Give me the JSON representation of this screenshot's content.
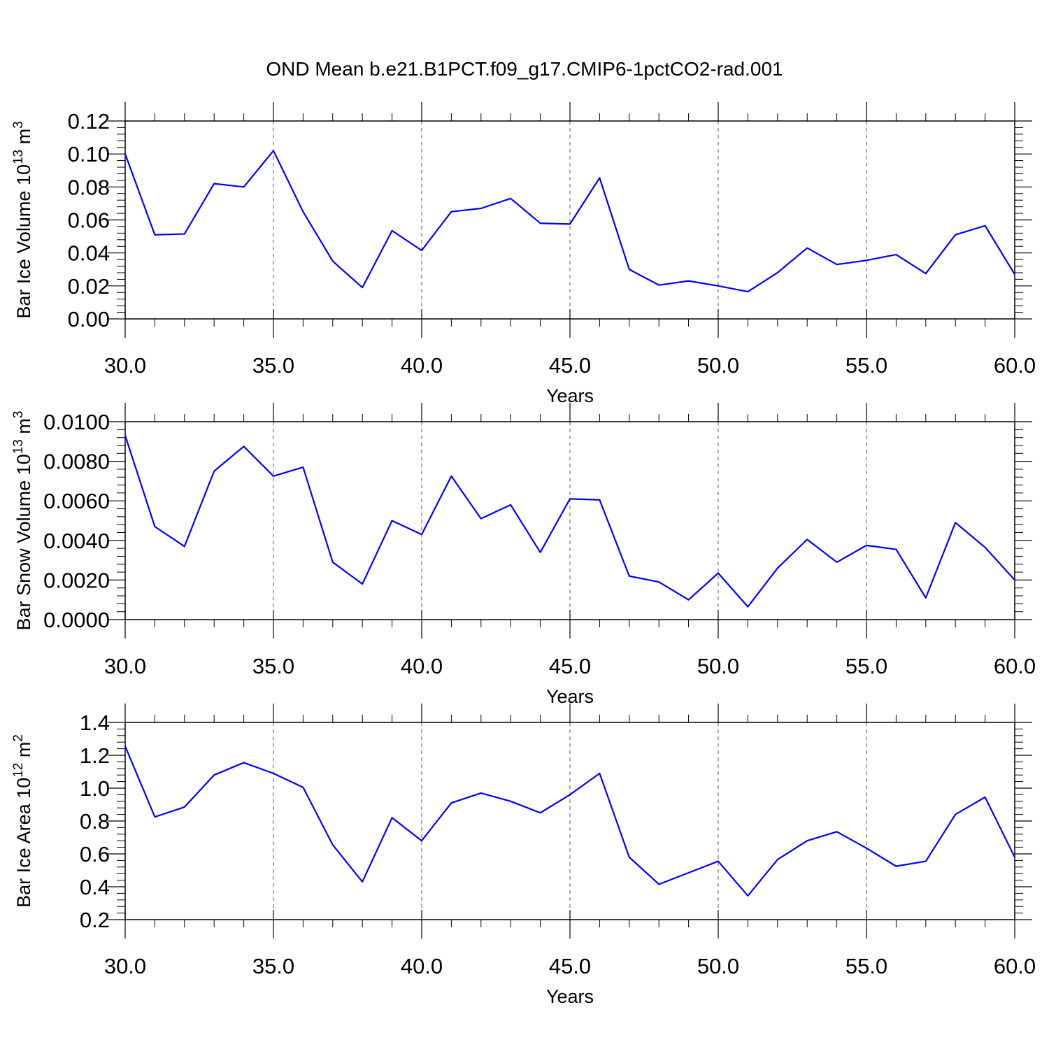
{
  "title": "OND Mean b.e21.B1PCT.f09_g17.CMIP6-1pctCO2-rad.001",
  "colors": {
    "line": "#0000ff",
    "axis": "#000000",
    "grid": "#555555"
  },
  "chart_data": [
    {
      "type": "line",
      "xlabel": "Years",
      "ylabel": "Bar Ice Volume 10",
      "ylabel_exp": "13",
      "ylabel_unit": " m",
      "ylabel_unit_exp": "3",
      "xlim": [
        30,
        60
      ],
      "ylim": [
        0,
        0.12
      ],
      "xticks": [
        30,
        35,
        40,
        45,
        50,
        55,
        60
      ],
      "xtick_labels": [
        "30.0",
        "35.0",
        "40.0",
        "45.0",
        "50.0",
        "55.0",
        "60.0"
      ],
      "yticks": [
        0,
        0.02,
        0.04,
        0.06,
        0.08,
        0.1,
        0.12
      ],
      "ytick_labels": [
        "0.00",
        "0.02",
        "0.04",
        "0.06",
        "0.08",
        "0.10",
        "0.12"
      ],
      "grid": "x-dashed",
      "x": [
        30,
        31,
        32,
        33,
        34,
        35,
        36,
        37,
        38,
        39,
        40,
        41,
        42,
        43,
        44,
        45,
        46,
        47,
        48,
        49,
        50,
        51,
        52,
        53,
        54,
        55,
        56,
        57,
        58,
        59,
        60
      ],
      "y": [
        0.1,
        0.051,
        0.0515,
        0.082,
        0.08,
        0.102,
        0.065,
        0.035,
        0.019,
        0.0535,
        0.0415,
        0.065,
        0.067,
        0.073,
        0.058,
        0.0575,
        0.0855,
        0.03,
        0.0205,
        0.023,
        0.02,
        0.0165,
        0.028,
        0.043,
        0.033,
        0.0355,
        0.039,
        0.0275,
        0.051,
        0.0565,
        0.027
      ]
    },
    {
      "type": "line",
      "xlabel": "Years",
      "ylabel": "Bar Snow Volume 10",
      "ylabel_exp": "13",
      "ylabel_unit": " m",
      "ylabel_unit_exp": "3",
      "xlim": [
        30,
        60
      ],
      "ylim": [
        0,
        0.01
      ],
      "xticks": [
        30,
        35,
        40,
        45,
        50,
        55,
        60
      ],
      "xtick_labels": [
        "30.0",
        "35.0",
        "40.0",
        "45.0",
        "50.0",
        "55.0",
        "60.0"
      ],
      "yticks": [
        0,
        0.002,
        0.004,
        0.006,
        0.008,
        0.01
      ],
      "ytick_labels": [
        "0.0000",
        "0.0020",
        "0.0040",
        "0.0060",
        "0.0080",
        "0.0100"
      ],
      "grid": "x-dashed",
      "x": [
        30,
        31,
        32,
        33,
        34,
        35,
        36,
        37,
        38,
        39,
        40,
        41,
        42,
        43,
        44,
        45,
        46,
        47,
        48,
        49,
        50,
        51,
        52,
        53,
        54,
        55,
        56,
        57,
        58,
        59,
        60
      ],
      "y": [
        0.0093,
        0.0047,
        0.0037,
        0.0075,
        0.00875,
        0.00725,
        0.0077,
        0.0029,
        0.0018,
        0.005,
        0.0043,
        0.00725,
        0.0051,
        0.0058,
        0.0034,
        0.0061,
        0.00605,
        0.0022,
        0.0019,
        0.001,
        0.00235,
        0.00065,
        0.0026,
        0.00405,
        0.0029,
        0.00375,
        0.00355,
        0.0011,
        0.0049,
        0.00365,
        0.002
      ]
    },
    {
      "type": "line",
      "xlabel": "Years",
      "ylabel": "Bar Ice Area 10",
      "ylabel_exp": "12",
      "ylabel_unit": " m",
      "ylabel_unit_exp": "2",
      "xlim": [
        30,
        60
      ],
      "ylim": [
        0.2,
        1.4
      ],
      "xticks": [
        30,
        35,
        40,
        45,
        50,
        55,
        60
      ],
      "xtick_labels": [
        "30.0",
        "35.0",
        "40.0",
        "45.0",
        "50.0",
        "55.0",
        "60.0"
      ],
      "yticks": [
        0.2,
        0.4,
        0.6,
        0.8,
        1.0,
        1.2,
        1.4
      ],
      "ytick_labels": [
        "0.2",
        "0.4",
        "0.6",
        "0.8",
        "1.0",
        "1.2",
        "1.4"
      ],
      "grid": "x-dashed",
      "x": [
        30,
        31,
        32,
        33,
        34,
        35,
        36,
        37,
        38,
        39,
        40,
        41,
        42,
        43,
        44,
        45,
        46,
        47,
        48,
        49,
        50,
        51,
        52,
        53,
        54,
        55,
        56,
        57,
        58,
        59,
        60
      ],
      "y": [
        1.255,
        0.825,
        0.885,
        1.08,
        1.155,
        1.09,
        1.005,
        0.655,
        0.43,
        0.82,
        0.68,
        0.91,
        0.97,
        0.92,
        0.85,
        0.96,
        1.09,
        0.58,
        0.415,
        0.485,
        0.555,
        0.345,
        0.565,
        0.68,
        0.735,
        0.635,
        0.525,
        0.555,
        0.84,
        0.945,
        0.58
      ]
    }
  ]
}
